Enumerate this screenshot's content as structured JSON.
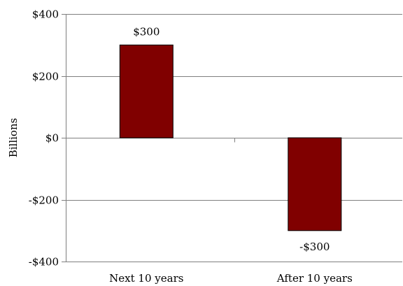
{
  "chart_data": {
    "type": "bar",
    "categories": [
      "Next 10 years",
      "After 10 years"
    ],
    "values": [
      300,
      -300
    ],
    "data_labels": [
      "$300",
      "-$300"
    ],
    "title": "",
    "xlabel": "",
    "ylabel": "Billions",
    "ylim": [
      -400,
      400
    ],
    "yticks": [
      400,
      200,
      0,
      -200,
      -400
    ],
    "ytick_labels": [
      "$400",
      "$200",
      "$0",
      "-$200",
      "-$400"
    ],
    "grid": true,
    "legend": "none",
    "bar_color": "#800000"
  }
}
